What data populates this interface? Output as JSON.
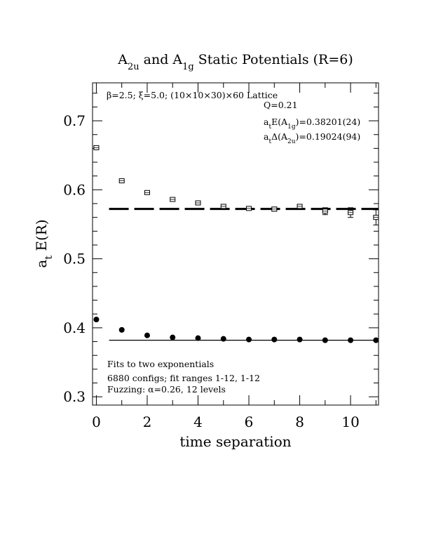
{
  "chart_data": {
    "type": "scatter",
    "title": {
      "parts": [
        {
          "text": "A"
        },
        {
          "text": "2u",
          "sub": true
        },
        {
          "text": " and A"
        },
        {
          "text": "1g",
          "sub": true
        },
        {
          "text": " Static Potentials (R=6)"
        }
      ]
    },
    "xlabel": "time separation",
    "ylabel": {
      "parts": [
        {
          "text": "a"
        },
        {
          "text": "t",
          "sub": true
        },
        {
          "text": " E(R)"
        }
      ]
    },
    "xlim": [
      -0.15,
      11.1
    ],
    "ylim": [
      0.288,
      0.755
    ],
    "x_ticks": [
      0,
      2,
      4,
      6,
      8,
      10
    ],
    "x_tick_labels": [
      "0",
      "2",
      "4",
      "6",
      "8",
      "10"
    ],
    "x_minor_ticks": [
      1,
      3,
      5,
      7,
      9,
      11
    ],
    "y_ticks": [
      0.3,
      0.4,
      0.5,
      0.6,
      0.7
    ],
    "y_tick_labels": [
      "0.3",
      "0.4",
      "0.5",
      "0.6",
      "0.7"
    ],
    "y_minor_step": 0.02,
    "grid": false,
    "legend": "none",
    "series": [
      {
        "marker": "open-square",
        "x": [
          0,
          1,
          2,
          3,
          4,
          5,
          6,
          7,
          8,
          9,
          10,
          11
        ],
        "y": [
          0.661,
          0.613,
          0.596,
          0.586,
          0.581,
          0.576,
          0.573,
          0.572,
          0.576,
          0.569,
          0.567,
          0.56
        ],
        "yerr": [
          0.001,
          0.001,
          0.001,
          0.001,
          0.001,
          0.001,
          0.002,
          0.003,
          0.003,
          0.005,
          0.007,
          0.011
        ]
      },
      {
        "marker": "filled-circle",
        "x": [
          0,
          1,
          2,
          3,
          4,
          5,
          6,
          7,
          8,
          9,
          10,
          11
        ],
        "y": [
          0.412,
          0.397,
          0.389,
          0.386,
          0.385,
          0.384,
          0.383,
          0.383,
          0.383,
          0.382,
          0.382,
          0.382
        ],
        "yerr": [
          0.0005,
          0.0005,
          0.0005,
          0.0005,
          0.0005,
          0.0005,
          0.0005,
          0.0005,
          0.0005,
          0.0005,
          0.0005,
          0.0005
        ]
      }
    ],
    "fit_lines": [
      {
        "style": "dashed",
        "x": [
          0.5,
          11.1
        ],
        "y": 0.5723
      },
      {
        "style": "solid",
        "x": [
          0.5,
          11.1
        ],
        "y": 0.38201
      }
    ],
    "annotations_top": [
      {
        "parts": [
          {
            "text": "β=2.5; ξ=5.0; (10×10×30)×60 Lattice"
          }
        ]
      },
      {
        "parts": [
          {
            "text": "Q=0.21"
          }
        ]
      },
      {
        "parts": [
          {
            "text": "a"
          },
          {
            "text": "t",
            "sub": true
          },
          {
            "text": "E(A"
          },
          {
            "text": "1g",
            "sub": true
          },
          {
            "text": ")=0.38201(24)"
          }
        ]
      },
      {
        "parts": [
          {
            "text": "a"
          },
          {
            "text": "t",
            "sub": true
          },
          {
            "text": "Δ(A"
          },
          {
            "text": "2u",
            "sub": true
          },
          {
            "text": ")=0.19024(94)"
          }
        ]
      }
    ],
    "annotations_bottom": [
      {
        "parts": [
          {
            "text": "Fits to two exponentials"
          }
        ]
      },
      {
        "parts": [
          {
            "text": "6880 configs; fit ranges 1-12, 1-12"
          }
        ]
      },
      {
        "parts": [
          {
            "text": "Fuzzing: α=0.26, 12 levels"
          }
        ]
      }
    ]
  }
}
